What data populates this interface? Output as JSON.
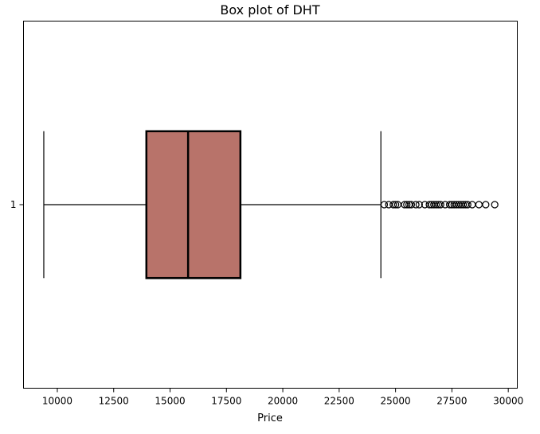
{
  "chart_data": {
    "type": "boxplot",
    "title": "Box plot of DHT",
    "xlabel": "Price",
    "ylabel": "",
    "orientation": "horizontal",
    "xlim": [
      8500,
      30400
    ],
    "x_ticks": [
      10000,
      12500,
      15000,
      17500,
      20000,
      22500,
      25000,
      27500,
      30000
    ],
    "y_tick_labels": [
      "1"
    ],
    "grid": false,
    "box_color": "#b8736a",
    "edge_color": "#000000",
    "series": [
      {
        "category": "1",
        "whisker_low": 9400,
        "q1": 13950,
        "median": 15800,
        "q3": 18120,
        "whisker_high": 24350,
        "outliers": [
          24500,
          24700,
          24900,
          25000,
          25100,
          25400,
          25500,
          25600,
          25700,
          25900,
          26050,
          26300,
          26500,
          26600,
          26700,
          26800,
          26900,
          27000,
          27200,
          27400,
          27500,
          27600,
          27700,
          27800,
          27900,
          28000,
          28100,
          28200,
          28400,
          28700,
          29000,
          29400
        ]
      }
    ]
  }
}
